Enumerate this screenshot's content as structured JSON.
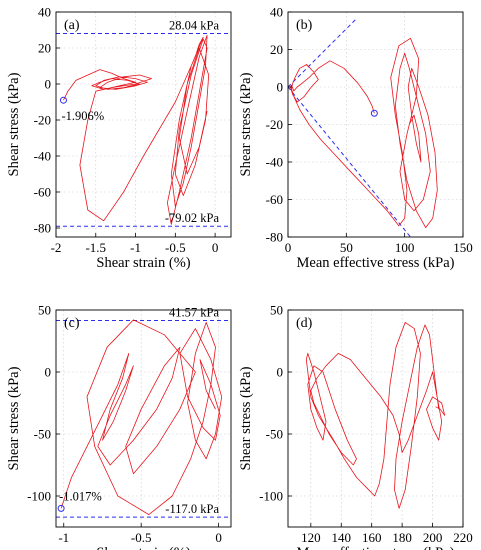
{
  "chart_data": [
    {
      "type": "line",
      "panel_label": "(a)",
      "xlabel": "Shear strain (%)",
      "ylabel": "Shear stress (kPa)",
      "xlim": [
        -2.0,
        0.2
      ],
      "ylim": [
        -85,
        40
      ],
      "xticks": [
        -2,
        -1.5,
        -1,
        -0.5,
        0
      ],
      "xtick_labels": [
        "-2",
        "-1.5",
        "-1",
        "-0.5",
        "0"
      ],
      "yticks": [
        -80,
        -60,
        -40,
        -20,
        0,
        20,
        40
      ],
      "ytick_labels": [
        "-80",
        "-60",
        "-40",
        "-20",
        "0",
        "20",
        "40"
      ],
      "grid": true,
      "hlines": [
        {
          "y": 28.04,
          "label": "28.04 kPa"
        },
        {
          "y": -79.02,
          "label": "-79.02 kPa"
        }
      ],
      "annotations": [
        {
          "text": "-1.906%",
          "x": -1.906,
          "y": -9
        }
      ],
      "start_marker": {
        "x": -1.906,
        "y": -9
      },
      "series": [
        {
          "x": [
            -1.906,
            -1.85,
            -1.75,
            -1.6,
            -1.45,
            -1.3,
            -1.15,
            -1.0,
            -1.2,
            -1.4,
            -1.55,
            -1.45,
            -1.3,
            -1.1,
            -0.95,
            -1.15,
            -1.35,
            -1.5,
            -1.4,
            -1.2,
            -1.0,
            -0.85,
            -1.0,
            -1.25,
            -1.45,
            -1.35,
            -1.15,
            -0.95,
            -0.8,
            -1.0,
            -1.3,
            -1.5,
            -1.6,
            -1.7,
            -1.6,
            -1.4,
            -1.15,
            -0.9,
            -0.7,
            -0.5,
            -0.35,
            -0.25,
            -0.2,
            -0.15,
            -0.3,
            -0.45,
            -0.55,
            -0.5,
            -0.4,
            -0.3,
            -0.2,
            -0.12,
            -0.1,
            -0.2,
            -0.35,
            -0.5,
            -0.6,
            -0.55,
            -0.45,
            -0.3,
            -0.18,
            -0.1,
            -0.15,
            -0.3,
            -0.45,
            -0.5,
            -0.4,
            -0.25,
            -0.12,
            -0.08,
            -0.2,
            -0.35,
            -0.45,
            -0.35,
            -0.2,
            -0.1
          ],
          "y": [
            -9,
            -4,
            2,
            5,
            8,
            6,
            3,
            1,
            -1,
            -3,
            -1,
            1,
            3,
            2,
            0,
            -2,
            -3,
            -1,
            2,
            4,
            3,
            1,
            -1,
            -3,
            -2,
            1,
            4,
            5,
            3,
            0,
            -2,
            -4,
            -20,
            -45,
            -70,
            -76,
            -60,
            -40,
            -25,
            -10,
            5,
            15,
            22,
            26,
            10,
            -20,
            -50,
            -68,
            -55,
            -35,
            -10,
            10,
            27,
            15,
            -15,
            -45,
            -66,
            -78,
            -60,
            -30,
            0,
            20,
            25,
            5,
            -25,
            -50,
            -62,
            -45,
            -20,
            5,
            20,
            0,
            -30,
            -50,
            -35,
            -15
          ]
        }
      ]
    },
    {
      "type": "line",
      "panel_label": "(b)",
      "xlabel": "Mean effective stress (kPa)",
      "ylabel": "Shear stress (kPa)",
      "xlim": [
        0,
        150
      ],
      "ylim": [
        -80,
        40
      ],
      "xticks": [
        0,
        50,
        100,
        150
      ],
      "xtick_labels": [
        "0",
        "50",
        "100",
        "150"
      ],
      "yticks": [
        -80,
        -60,
        -40,
        -20,
        0,
        20,
        40
      ],
      "ytick_labels": [
        "-80",
        "-60",
        "-40",
        "-20",
        "0",
        "20",
        "40"
      ],
      "grid": true,
      "dashed_lines": [
        {
          "x": [
            0,
            58
          ],
          "y": [
            0,
            36
          ]
        },
        {
          "x": [
            0,
            105
          ],
          "y": [
            0,
            -80
          ]
        }
      ],
      "start_marker": {
        "x": 74,
        "y": -14
      },
      "series": [
        {
          "x": [
            74,
            72,
            68,
            60,
            48,
            36,
            26,
            18,
            12,
            8,
            5,
            3,
            2,
            4,
            8,
            14,
            20,
            26,
            22,
            16,
            10,
            6,
            4,
            3,
            5,
            10,
            18,
            28,
            40,
            55,
            70,
            85,
            95,
            100,
            102,
            98,
            92,
            88,
            95,
            105,
            112,
            110,
            102,
            96,
            100,
            108,
            116,
            122,
            118,
            110,
            104,
            100,
            96,
            92,
            96,
            102,
            110,
            118,
            124,
            128,
            126,
            120,
            112,
            106,
            103,
            106,
            110,
            114,
            112,
            108,
            104
          ],
          "y": [
            -14,
            -10,
            -5,
            2,
            10,
            14,
            10,
            5,
            2,
            0,
            -2,
            1,
            0,
            -4,
            -8,
            -5,
            0,
            4,
            8,
            12,
            10,
            5,
            2,
            -1,
            -5,
            -12,
            -20,
            -28,
            -36,
            -46,
            -56,
            -66,
            -74,
            -70,
            -55,
            -35,
            -15,
            5,
            22,
            26,
            15,
            -5,
            -25,
            -45,
            -60,
            -66,
            -60,
            -45,
            -25,
            -5,
            10,
            18,
            10,
            -10,
            -30,
            -50,
            -66,
            -75,
            -70,
            -55,
            -35,
            -15,
            0,
            10,
            0,
            -15,
            -30,
            -40,
            -25,
            -15,
            -20
          ]
        }
      ]
    },
    {
      "type": "line",
      "panel_label": "(c)",
      "xlabel": "Shear strain (%)",
      "ylabel": "Shear stress (kPa)",
      "xlim": [
        -1.05,
        0.08
      ],
      "ylim": [
        -125,
        50
      ],
      "xticks": [
        -1,
        -0.5,
        0
      ],
      "xtick_labels": [
        "-1",
        "-0.5",
        "0"
      ],
      "yticks": [
        -100,
        -50,
        0,
        50
      ],
      "ytick_labels": [
        "-100",
        "-50",
        "0",
        "50"
      ],
      "grid": true,
      "hlines": [
        {
          "y": 41.57,
          "label": "41.57 kPa"
        },
        {
          "y": -117.0,
          "label": "-117.0 kPa"
        }
      ],
      "annotations": [
        {
          "text": "-1.017%",
          "x": -1.017,
          "y": -110
        }
      ],
      "start_marker": {
        "x": -1.017,
        "y": -110
      },
      "series": [
        {
          "x": [
            -1.017,
            -0.95,
            -0.85,
            -0.75,
            -0.65,
            -0.58,
            -0.62,
            -0.7,
            -0.75,
            -0.68,
            -0.6,
            -0.55,
            -0.6,
            -0.7,
            -0.78,
            -0.7,
            -0.55,
            -0.4,
            -0.3,
            -0.25,
            -0.35,
            -0.5,
            -0.6,
            -0.55,
            -0.4,
            -0.25,
            -0.15,
            -0.35,
            -0.55,
            -0.72,
            -0.85,
            -0.8,
            -0.65,
            -0.45,
            -0.3,
            -0.18,
            -0.1,
            -0.05,
            -0.02,
            -0.08,
            -0.15,
            -0.2,
            -0.15,
            -0.08,
            -0.02,
            0.02,
            -0.05,
            -0.15,
            -0.25,
            -0.2,
            -0.1,
            -0.02,
            0.01,
            -0.05,
            -0.12,
            -0.08,
            -0.02
          ],
          "y": [
            -110,
            -85,
            -60,
            -35,
            -10,
            15,
            -5,
            -30,
            -55,
            -40,
            -15,
            5,
            -10,
            -35,
            -60,
            -75,
            -55,
            -30,
            -5,
            20,
            5,
            -30,
            -60,
            -82,
            -60,
            -30,
            0,
            30,
            42,
            20,
            -20,
            -60,
            -100,
            -115,
            -100,
            -70,
            -40,
            -10,
            20,
            40,
            15,
            -25,
            -55,
            -70,
            -50,
            -20,
            10,
            35,
            15,
            -20,
            -45,
            -55,
            -35,
            -10,
            10,
            -15,
            -30
          ]
        }
      ]
    },
    {
      "type": "line",
      "panel_label": "(d)",
      "xlabel": "Mean effective stress (kPa)",
      "ylabel": "Shear stress (kPa)",
      "xlim": [
        105,
        220
      ],
      "ylim": [
        -125,
        50
      ],
      "xticks": [
        120,
        140,
        160,
        180,
        200,
        220
      ],
      "xtick_labels": [
        "120",
        "140",
        "160",
        "180",
        "200",
        "220"
      ],
      "yticks": [
        -100,
        -50,
        0,
        50
      ],
      "ytick_labels": [
        "-100",
        "-50",
        "0",
        "50"
      ],
      "grid": true,
      "series": [
        {
          "x": [
            204,
            202,
            200,
            198,
            195,
            190,
            185,
            180,
            176,
            175,
            178,
            182,
            186,
            190,
            192,
            188,
            182,
            176,
            172,
            170,
            168,
            165,
            162,
            158,
            150,
            142,
            135,
            130,
            125,
            120,
            117,
            118,
            122,
            126,
            130,
            128,
            124,
            120,
            118,
            122,
            128,
            136,
            144,
            150,
            148,
            140,
            132,
            126,
            122,
            120,
            124,
            130,
            138,
            146,
            156,
            166,
            174,
            178,
            180,
            184,
            190,
            196,
            200,
            203,
            206,
            204,
            200,
            196,
            200,
            206,
            208,
            205,
            202
          ],
          "y": [
            -30,
            -10,
            10,
            30,
            38,
            20,
            -10,
            -40,
            -70,
            -95,
            -110,
            -95,
            -60,
            -20,
            15,
            35,
            40,
            20,
            -10,
            -40,
            -70,
            -90,
            -100,
            -95,
            -85,
            -70,
            -55,
            -45,
            -35,
            -20,
            10,
            15,
            0,
            -20,
            -40,
            -55,
            -45,
            -30,
            -10,
            5,
            0,
            -30,
            -55,
            -70,
            -75,
            -65,
            -50,
            -35,
            -25,
            -15,
            -5,
            5,
            15,
            10,
            -5,
            -20,
            -35,
            -50,
            -65,
            -55,
            -35,
            -15,
            0,
            -20,
            -40,
            -55,
            -45,
            -30,
            -20,
            -25,
            -35,
            -30,
            -28
          ]
        }
      ]
    }
  ]
}
